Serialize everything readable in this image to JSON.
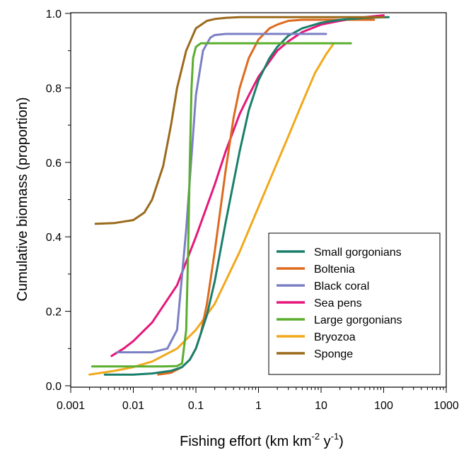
{
  "chart_data": {
    "type": "line",
    "x_scale": "log",
    "xlim": [
      0.001,
      1000
    ],
    "ylim": [
      0.0,
      1.0
    ],
    "x_ticks": [
      "0.001",
      "0.01",
      "0.1",
      "1",
      "10",
      "100",
      "1000"
    ],
    "y_ticks": [
      "0.0",
      "0.2",
      "0.4",
      "0.6",
      "0.8",
      "1.0"
    ],
    "ylabel": "Cumulative biomass (proportion)",
    "xlabel": {
      "main": "Fishing effort (km km",
      "sup1": "-2",
      "mid": " y",
      "sup2": "-1",
      "end": ")"
    },
    "legend_position": "bottom-right",
    "series": [
      {
        "name": "Small gorgonians",
        "color": "#1a7f6a",
        "x": [
          0.0035,
          0.01,
          0.02,
          0.04,
          0.06,
          0.08,
          0.1,
          0.15,
          0.2,
          0.3,
          0.5,
          0.7,
          1,
          1.5,
          2,
          3,
          5,
          10,
          20,
          50,
          120
        ],
        "y": [
          0.03,
          0.03,
          0.033,
          0.04,
          0.05,
          0.07,
          0.1,
          0.19,
          0.28,
          0.44,
          0.63,
          0.74,
          0.82,
          0.88,
          0.91,
          0.94,
          0.96,
          0.975,
          0.983,
          0.988,
          0.99
        ]
      },
      {
        "name": "Boltenia",
        "color": "#dd6a1e",
        "x": [
          0.025,
          0.04,
          0.06,
          0.08,
          0.1,
          0.12,
          0.15,
          0.2,
          0.3,
          0.4,
          0.5,
          0.7,
          1,
          1.5,
          2,
          3,
          5,
          10,
          20,
          70
        ],
        "y": [
          0.03,
          0.035,
          0.05,
          0.07,
          0.1,
          0.14,
          0.22,
          0.36,
          0.58,
          0.72,
          0.8,
          0.88,
          0.93,
          0.96,
          0.97,
          0.98,
          0.983,
          0.983,
          0.983,
          0.983
        ]
      },
      {
        "name": "Black coral",
        "color": "#7b7fc4",
        "x": [
          0.0055,
          0.01,
          0.02,
          0.035,
          0.05,
          0.07,
          0.1,
          0.13,
          0.17,
          0.2,
          0.3,
          0.5,
          1,
          2,
          5,
          12
        ],
        "y": [
          0.09,
          0.09,
          0.09,
          0.1,
          0.15,
          0.42,
          0.78,
          0.9,
          0.935,
          0.942,
          0.945,
          0.945,
          0.945,
          0.945,
          0.945,
          0.945
        ]
      },
      {
        "name": "Sea pens",
        "color": "#e5177b",
        "x": [
          0.0045,
          0.007,
          0.01,
          0.02,
          0.05,
          0.1,
          0.2,
          0.3,
          0.5,
          0.7,
          1,
          2,
          3,
          5,
          10,
          20,
          50,
          100
        ],
        "y": [
          0.08,
          0.1,
          0.12,
          0.17,
          0.27,
          0.4,
          0.54,
          0.63,
          0.73,
          0.78,
          0.83,
          0.9,
          0.925,
          0.95,
          0.97,
          0.98,
          0.99,
          0.995
        ]
      },
      {
        "name": "Large gorgonians",
        "color": "#5aae2e",
        "x": [
          0.0022,
          0.01,
          0.03,
          0.05,
          0.06,
          0.07,
          0.075,
          0.08,
          0.085,
          0.09,
          0.1,
          0.12,
          0.2,
          1,
          10,
          30
        ],
        "y": [
          0.052,
          0.052,
          0.052,
          0.053,
          0.06,
          0.15,
          0.35,
          0.6,
          0.8,
          0.88,
          0.91,
          0.92,
          0.92,
          0.92,
          0.92,
          0.92
        ]
      },
      {
        "name": "Bryozoa",
        "color": "#f2a81c",
        "x": [
          0.002,
          0.005,
          0.01,
          0.02,
          0.05,
          0.1,
          0.2,
          0.5,
          1,
          2,
          3,
          5,
          8,
          12,
          16
        ],
        "y": [
          0.03,
          0.04,
          0.05,
          0.065,
          0.1,
          0.15,
          0.22,
          0.36,
          0.48,
          0.6,
          0.67,
          0.76,
          0.84,
          0.89,
          0.92
        ]
      },
      {
        "name": "Sponge",
        "color": "#9b6a1c",
        "x": [
          0.0025,
          0.005,
          0.01,
          0.015,
          0.02,
          0.03,
          0.04,
          0.05,
          0.07,
          0.1,
          0.15,
          0.2,
          0.3,
          0.5,
          1,
          10,
          100
        ],
        "y": [
          0.435,
          0.437,
          0.445,
          0.465,
          0.5,
          0.59,
          0.7,
          0.8,
          0.9,
          0.96,
          0.98,
          0.985,
          0.988,
          0.99,
          0.99,
          0.99,
          0.99
        ]
      }
    ]
  }
}
